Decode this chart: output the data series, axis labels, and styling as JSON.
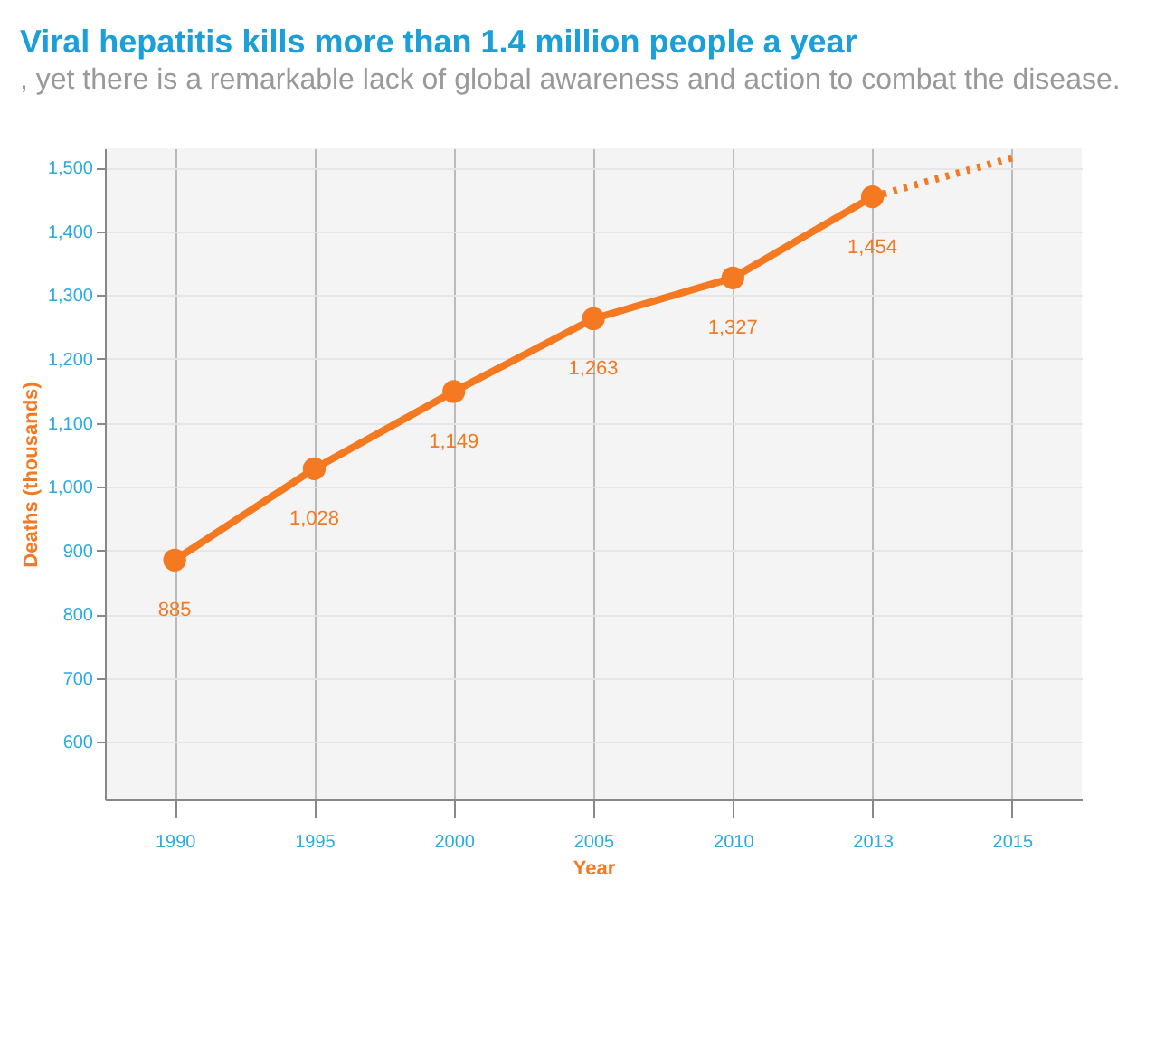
{
  "chart_data": {
    "type": "line",
    "title": "Viral hepatitis kills more than 1.4 million people a year",
    "subtitle": ", yet there is a remarkable lack of global awareness and action to combat the disease.",
    "xlabel": "Year",
    "ylabel": "Deaths (thousands)",
    "categories": [
      "1990",
      "1995",
      "2000",
      "2005",
      "2010",
      "2013",
      "2015"
    ],
    "series": [
      {
        "color": "#f47920",
        "values": [
          885,
          1028,
          1149,
          1263,
          1327,
          1454,
          null
        ],
        "value_labels": [
          "885",
          "1,028",
          "1,149",
          "1,263",
          "1,327",
          "1,454",
          null
        ],
        "marker": "circle",
        "line_style": "solid"
      },
      {
        "color": "#f47920",
        "values": [
          null,
          null,
          null,
          null,
          null,
          1454,
          1515
        ],
        "line_style": "dotted"
      }
    ],
    "ylim": [
      510,
      1530
    ],
    "yticks": [
      {
        "value": 600,
        "label": "600"
      },
      {
        "value": 700,
        "label": "700"
      },
      {
        "value": 800,
        "label": "800"
      },
      {
        "value": 900,
        "label": "900"
      },
      {
        "value": 1000,
        "label": "1,000"
      },
      {
        "value": 1100,
        "label": "1,100"
      },
      {
        "value": 1200,
        "label": "1,200"
      },
      {
        "value": 1300,
        "label": "1,300"
      },
      {
        "value": 1400,
        "label": "1,400"
      },
      {
        "value": 1500,
        "label": "1,500"
      }
    ],
    "grid": true
  }
}
